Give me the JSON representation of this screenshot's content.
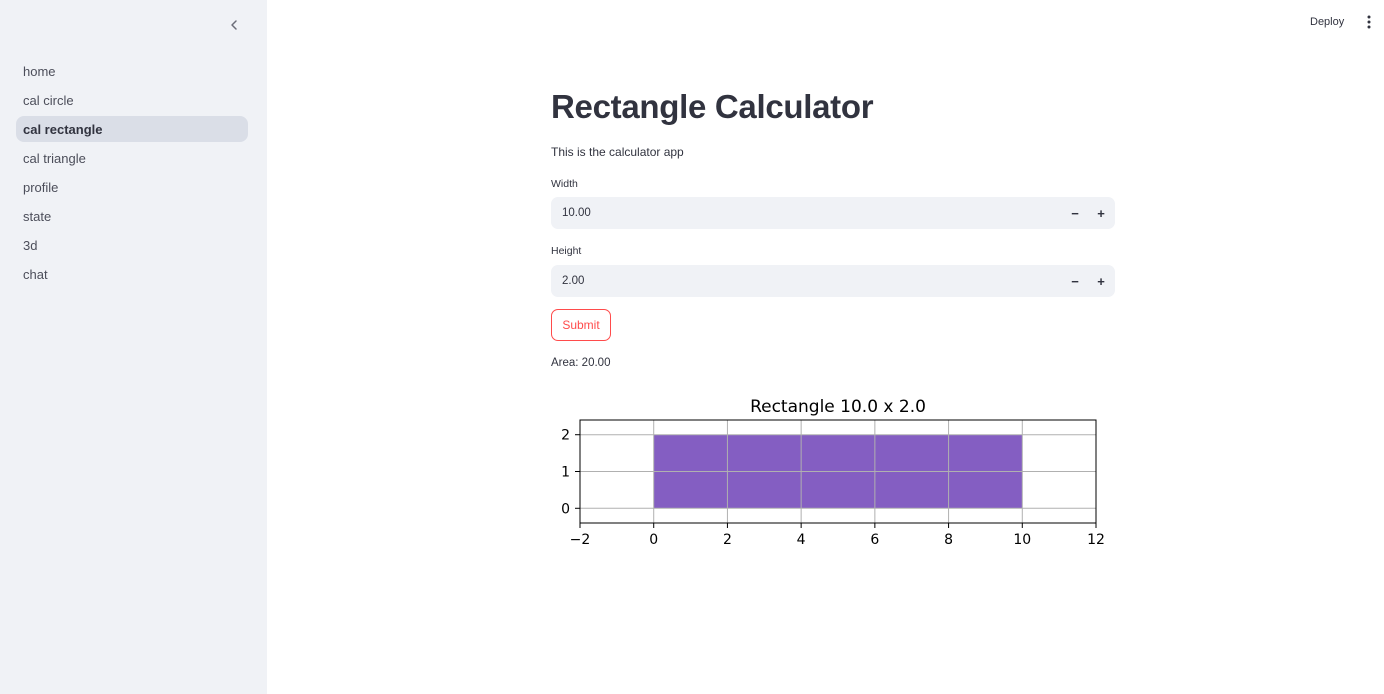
{
  "sidebar": {
    "items": [
      {
        "label": "home",
        "active": false
      },
      {
        "label": "cal circle",
        "active": false
      },
      {
        "label": "cal rectangle",
        "active": true
      },
      {
        "label": "cal triangle",
        "active": false
      },
      {
        "label": "profile",
        "active": false
      },
      {
        "label": "state",
        "active": false
      },
      {
        "label": "3d",
        "active": false
      },
      {
        "label": "chat",
        "active": false
      }
    ]
  },
  "header": {
    "deploy_label": "Deploy"
  },
  "main": {
    "title": "Rectangle Calculator",
    "description": "This is the calculator app",
    "width": {
      "label": "Width",
      "value": "10.00",
      "minus": "−",
      "plus": "+"
    },
    "height": {
      "label": "Height",
      "value": "2.00",
      "minus": "−",
      "plus": "+"
    },
    "submit_label": "Submit",
    "result": "Area: 20.00"
  },
  "colors": {
    "accent": "#ff4b4b",
    "fill": "#845ec2",
    "sidebar_bg": "#f0f2f6"
  },
  "chart_data": {
    "type": "area",
    "title": "Rectangle 10.0 x 2.0",
    "xlabel": "",
    "ylabel": "",
    "xlim": [
      -2,
      12
    ],
    "ylim": [
      -0.4,
      2.4
    ],
    "xticks": [
      -2,
      0,
      2,
      4,
      6,
      8,
      10,
      12
    ],
    "xtick_labels": [
      "−2",
      "0",
      "2",
      "4",
      "6",
      "8",
      "10",
      "12"
    ],
    "yticks": [
      0,
      1,
      2
    ],
    "ytick_labels": [
      "0",
      "1",
      "2"
    ],
    "grid": true,
    "rectangle": {
      "x": 0,
      "y": 0,
      "width": 10,
      "height": 2,
      "color": "#845ec2"
    }
  }
}
